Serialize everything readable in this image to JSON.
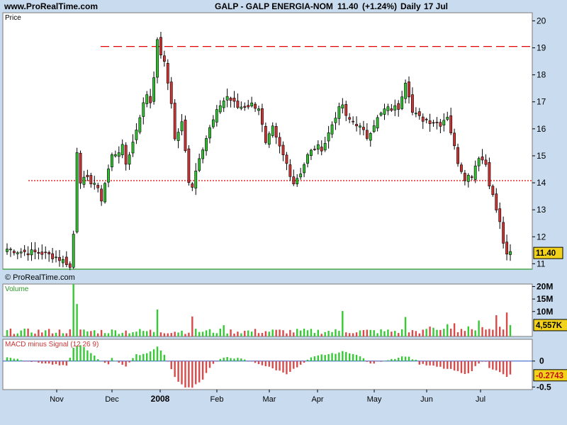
{
  "header": {
    "site": "www.ProRealTime.com",
    "title": "GALP - GALP ENERGIA-NOM",
    "last": "11.40",
    "change": "(+1.24%)",
    "period": "Daily",
    "date": "17 Jul"
  },
  "chart_data": {
    "type": "candlestick",
    "panels": [
      {
        "name": "price",
        "label": "Price",
        "watermark": "© ProRealTime.com",
        "ylim": [
          10.8,
          20.3
        ],
        "ticks": [
          11,
          12,
          13,
          14,
          15,
          16,
          17,
          18,
          19,
          20
        ],
        "last_value_badge": "11.40",
        "reference_lines": [
          {
            "value": 19.05,
            "style": "dashed",
            "color": "#e00000"
          },
          {
            "value": 14.08,
            "style": "dotted",
            "color": "#e00000"
          },
          {
            "value": 10.8,
            "style": "solid",
            "color": "#2a9a2a"
          }
        ]
      },
      {
        "name": "volume",
        "label": "Volume",
        "ylim": [
          0,
          21
        ],
        "ticks": [
          {
            "value": 10,
            "label": "10M"
          },
          {
            "value": 15,
            "label": "15M"
          },
          {
            "value": 20,
            "label": "20M"
          }
        ],
        "last_value_badge": "4,557K"
      },
      {
        "name": "macd_minus_signal",
        "label": "MACD minus Signal (12 26 9)",
        "ylim": [
          -0.55,
          0.42
        ],
        "ticks": [
          {
            "value": 0,
            "label": "0"
          },
          {
            "value": -0.5,
            "label": "-0.5"
          }
        ],
        "last_value_badge": "-0.2743"
      }
    ],
    "x_axis_labels": [
      "Nov",
      "Dec",
      "2008",
      "Feb",
      "Mar",
      "Apr",
      "May",
      "Jun",
      "Jul"
    ],
    "colors": {
      "up": "#2fbf2f",
      "down": "#cc3333",
      "up_volume": "#36c936",
      "down_volume": "#d84a4a",
      "badge": "#f2d21b"
    },
    "close_keypoints": [
      [
        0,
        11.55
      ],
      [
        4,
        11.45
      ],
      [
        10,
        11.4
      ],
      [
        14,
        11.25
      ],
      [
        17,
        11.05
      ],
      [
        18,
        10.85
      ],
      [
        19,
        12.1
      ],
      [
        20,
        15.2
      ],
      [
        21,
        14.1
      ],
      [
        23,
        14.1
      ],
      [
        25,
        14.0
      ],
      [
        27,
        13.4
      ],
      [
        28,
        14.0
      ],
      [
        30,
        15.0
      ],
      [
        33,
        15.3
      ],
      [
        34,
        14.7
      ],
      [
        36,
        15.5
      ],
      [
        38,
        16.5
      ],
      [
        40,
        17.3
      ],
      [
        41,
        17.0
      ],
      [
        42,
        18.0
      ],
      [
        43,
        19.2
      ],
      [
        45,
        18.4
      ],
      [
        47,
        17.0
      ],
      [
        48,
        15.6
      ],
      [
        50,
        16.2
      ],
      [
        52,
        14.1
      ],
      [
        53,
        13.9
      ],
      [
        55,
        15.0
      ],
      [
        58,
        16.0
      ],
      [
        61,
        16.9
      ],
      [
        63,
        17.2
      ],
      [
        66,
        16.8
      ],
      [
        70,
        16.9
      ],
      [
        72,
        16.8
      ],
      [
        74,
        15.4
      ],
      [
        76,
        16.0
      ],
      [
        77,
        15.6
      ],
      [
        79,
        15.0
      ],
      [
        80,
        14.7
      ],
      [
        82,
        14.0
      ],
      [
        84,
        14.4
      ],
      [
        86,
        15.0
      ],
      [
        88,
        15.3
      ],
      [
        90,
        15.3
      ],
      [
        91,
        15.5
      ],
      [
        94,
        16.5
      ],
      [
        96,
        16.9
      ],
      [
        97,
        16.4
      ],
      [
        100,
        16.2
      ],
      [
        103,
        15.7
      ],
      [
        105,
        16.2
      ],
      [
        108,
        16.7
      ],
      [
        112,
        16.8
      ],
      [
        114,
        17.8
      ],
      [
        115,
        17.3
      ],
      [
        116,
        16.6
      ],
      [
        118,
        16.4
      ],
      [
        121,
        16.3
      ],
      [
        124,
        16.2
      ],
      [
        126,
        16.5
      ],
      [
        128,
        15.3
      ],
      [
        129,
        14.8
      ],
      [
        131,
        14.2
      ],
      [
        133,
        14.3
      ],
      [
        135,
        15.0
      ],
      [
        137,
        14.7
      ],
      [
        138,
        14.0
      ],
      [
        139,
        13.5
      ],
      [
        140,
        13.0
      ],
      [
        141,
        12.5
      ],
      [
        142,
        11.8
      ],
      [
        143,
        11.25
      ],
      [
        144,
        11.4
      ]
    ],
    "volume_spikes": [
      {
        "index": 19,
        "value": 21
      },
      {
        "index": 20,
        "value": 13
      },
      {
        "index": 43,
        "value": 10.8
      },
      {
        "index": 53,
        "value": 8
      },
      {
        "index": 62,
        "value": 4.5
      },
      {
        "index": 96,
        "value": 10.2
      },
      {
        "index": 114,
        "value": 7.8
      },
      {
        "index": 135,
        "value": 6.4
      },
      {
        "index": 140,
        "value": 8.5
      },
      {
        "index": 143,
        "value": 9.6
      },
      {
        "index": 144,
        "value": 4.557
      }
    ],
    "macd_keypoints": [
      [
        0,
        0.08
      ],
      [
        6,
        0.0
      ],
      [
        17,
        -0.1
      ],
      [
        19,
        0.25
      ],
      [
        21,
        0.32
      ],
      [
        23,
        0.2
      ],
      [
        26,
        0.04
      ],
      [
        27,
        0.0
      ],
      [
        29,
        -0.05
      ],
      [
        30,
        0.05
      ],
      [
        34,
        -0.1
      ],
      [
        37,
        0.12
      ],
      [
        40,
        0.15
      ],
      [
        43,
        0.28
      ],
      [
        45,
        0.12
      ],
      [
        46,
        0.0
      ],
      [
        48,
        -0.32
      ],
      [
        51,
        -0.52
      ],
      [
        53,
        -0.5
      ],
      [
        56,
        -0.35
      ],
      [
        58,
        -0.12
      ],
      [
        60,
        0.0
      ],
      [
        63,
        0.08
      ],
      [
        67,
        0.04
      ],
      [
        69,
        0.0
      ],
      [
        72,
        -0.05
      ],
      [
        75,
        -0.12
      ],
      [
        80,
        -0.24
      ],
      [
        84,
        -0.08
      ],
      [
        87,
        0.06
      ],
      [
        90,
        0.12
      ],
      [
        93,
        0.14
      ],
      [
        96,
        0.18
      ],
      [
        99,
        0.15
      ],
      [
        102,
        0.05
      ],
      [
        104,
        -0.06
      ],
      [
        107,
        0.0
      ],
      [
        110,
        0.04
      ],
      [
        114,
        0.1
      ],
      [
        117,
        0.02
      ],
      [
        118,
        -0.06
      ],
      [
        122,
        -0.1
      ],
      [
        124,
        -0.12
      ],
      [
        125,
        -0.14
      ],
      [
        128,
        -0.18
      ],
      [
        131,
        -0.26
      ],
      [
        133,
        -0.18
      ],
      [
        135,
        -0.04
      ],
      [
        137,
        0.0
      ],
      [
        138,
        -0.12
      ],
      [
        141,
        -0.22
      ],
      [
        143,
        -0.3
      ],
      [
        144,
        -0.27
      ]
    ]
  }
}
